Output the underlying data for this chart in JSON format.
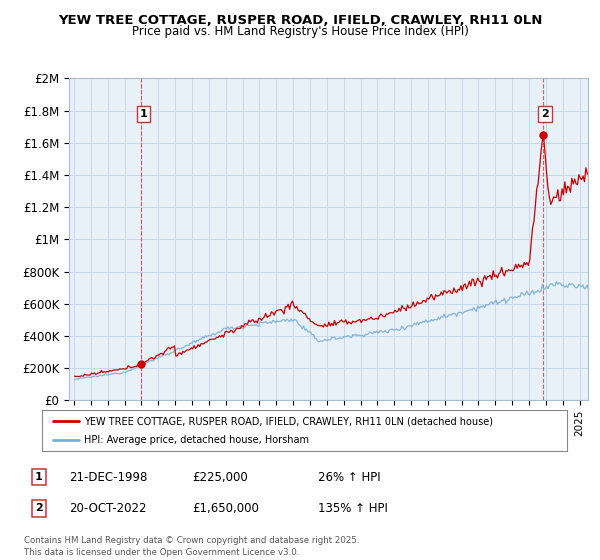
{
  "title": "YEW TREE COTTAGE, RUSPER ROAD, IFIELD, CRAWLEY, RH11 0LN",
  "subtitle": "Price paid vs. HM Land Registry's House Price Index (HPI)",
  "ylabel_ticks": [
    "£0",
    "£200K",
    "£400K",
    "£600K",
    "£800K",
    "£1M",
    "£1.2M",
    "£1.4M",
    "£1.6M",
    "£1.8M",
    "£2M"
  ],
  "ytick_values": [
    0,
    200000,
    400000,
    600000,
    800000,
    1000000,
    1200000,
    1400000,
    1600000,
    1800000,
    2000000
  ],
  "ylim": [
    0,
    2000000
  ],
  "xlim_start": 1994.7,
  "xlim_end": 2025.5,
  "red_line_color": "#cc0000",
  "blue_line_color": "#7ab0d4",
  "chart_bg_color": "#e8f0f8",
  "point1_x": 1998.97,
  "point1_y": 225000,
  "point2_x": 2022.8,
  "point2_y": 1650000,
  "legend_red_label": "YEW TREE COTTAGE, RUSPER ROAD, IFIELD, CRAWLEY, RH11 0LN (detached house)",
  "legend_blue_label": "HPI: Average price, detached house, Horsham",
  "table_row1": [
    "1",
    "21-DEC-1998",
    "£225,000",
    "26% ↑ HPI"
  ],
  "table_row2": [
    "2",
    "20-OCT-2022",
    "£1,650,000",
    "135% ↑ HPI"
  ],
  "footnote": "Contains HM Land Registry data © Crown copyright and database right 2025.\nThis data is licensed under the Open Government Licence v3.0.",
  "background_color": "#ffffff",
  "grid_color": "#c8d8e8"
}
